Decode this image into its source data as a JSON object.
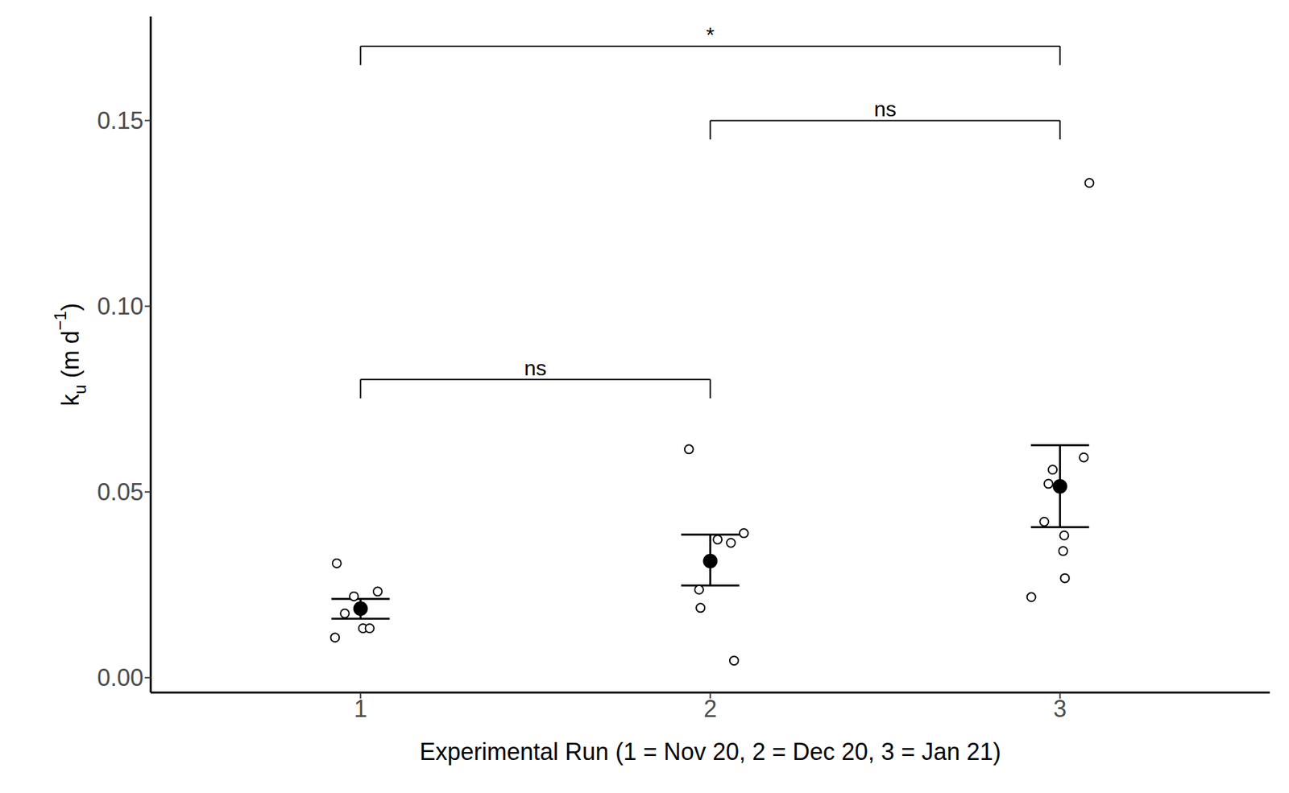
{
  "chart_data": {
    "type": "scatter",
    "xlabel": "Experimental Run (1 = Nov 20, 2 = Dec 20, 3 = Jan 21)",
    "ylabel_parts": [
      {
        "text": "k"
      },
      {
        "text": "u",
        "sub": true
      },
      {
        "text": " (m d"
      },
      {
        "text": "−1",
        "sup": true
      },
      {
        "text": ")"
      }
    ],
    "xlim": [
      0.4,
      3.6
    ],
    "xticks": [
      1,
      2,
      3
    ],
    "ylim": [
      -0.004,
      0.178
    ],
    "yticks": [
      {
        "value": 0,
        "label": "0.00"
      },
      {
        "value": 0.05,
        "label": "0.05"
      },
      {
        "value": 0.1,
        "label": "0.10"
      },
      {
        "value": 0.15,
        "label": "0.15"
      }
    ],
    "grid": false,
    "groups": [
      {
        "x": 1,
        "mean": 0.0186,
        "lower": 0.0159,
        "upper": 0.0212,
        "points": {
          "x": [
            0.932,
            0.981,
            1.049,
            0.955,
            1.007,
            1.026,
            0.927
          ],
          "y": [
            0.0308,
            0.0219,
            0.0232,
            0.0173,
            0.0133,
            0.0133,
            0.0108
          ]
        }
      },
      {
        "x": 2,
        "mean": 0.0314,
        "lower": 0.0248,
        "upper": 0.0385,
        "points": {
          "x": [
            1.939,
            2.021,
            2.059,
            2.096,
            1.968,
            1.972,
            2.068
          ],
          "y": [
            0.0615,
            0.0372,
            0.0363,
            0.0389,
            0.0237,
            0.0188,
            0.0046
          ]
        }
      },
      {
        "x": 3,
        "mean": 0.0515,
        "lower": 0.0405,
        "upper": 0.0626,
        "points": {
          "x": [
            3.084,
            3.068,
            2.979,
            2.967,
            2.955,
            3.012,
            3.009,
            3.014,
            2.918
          ],
          "y": [
            0.1332,
            0.0593,
            0.056,
            0.0522,
            0.042,
            0.0383,
            0.0341,
            0.0268,
            0.0217
          ]
        }
      }
    ],
    "brackets": [
      {
        "x1": 1,
        "x2": 3,
        "y": 0.17,
        "label": "*"
      },
      {
        "x1": 2,
        "x2": 3,
        "y": 0.15,
        "label": "ns"
      },
      {
        "x1": 1,
        "x2": 2,
        "y": 0.0803,
        "label": "ns"
      }
    ]
  }
}
